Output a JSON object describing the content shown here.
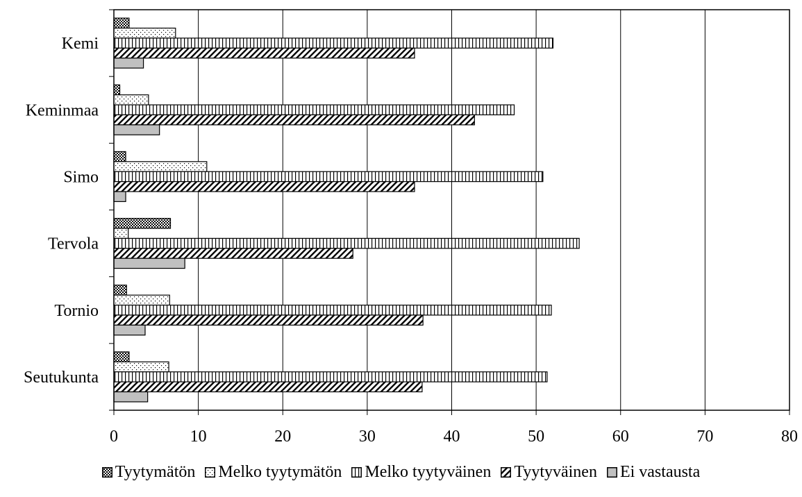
{
  "chart_data": {
    "type": "bar",
    "orientation": "horizontal",
    "categories": [
      "Kemi",
      "Keminmaa",
      "Simo",
      "Tervola",
      "Tornio",
      "Seutukunta"
    ],
    "series": [
      {
        "name": "Tyytymätön",
        "pattern": "checker-dark",
        "values": [
          1.8,
          0.7,
          1.4,
          6.7,
          1.5,
          1.8
        ]
      },
      {
        "name": "Melko tyytymätön",
        "pattern": "dots",
        "values": [
          7.3,
          4.1,
          11.0,
          1.7,
          6.6,
          6.5
        ]
      },
      {
        "name": "Melko tyytyväinen",
        "pattern": "vertical-lines",
        "values": [
          52.0,
          47.4,
          50.8,
          55.1,
          51.8,
          51.3
        ]
      },
      {
        "name": "Tyytyväinen",
        "pattern": "diagonal-lines",
        "values": [
          35.6,
          42.7,
          35.6,
          28.3,
          36.6,
          36.5
        ]
      },
      {
        "name": "Ei vastausta",
        "pattern": "solid-gray",
        "values": [
          3.5,
          5.4,
          1.4,
          8.4,
          3.7,
          4.0
        ]
      }
    ],
    "xlim": [
      0,
      80
    ],
    "xticks": [
      "0",
      "10",
      "20",
      "30",
      "40",
      "50",
      "60",
      "70",
      "80"
    ],
    "grid": true,
    "legend_position": "bottom",
    "colors": {
      "fill_gray": "#c0c0c0",
      "frame": "#000000"
    }
  }
}
